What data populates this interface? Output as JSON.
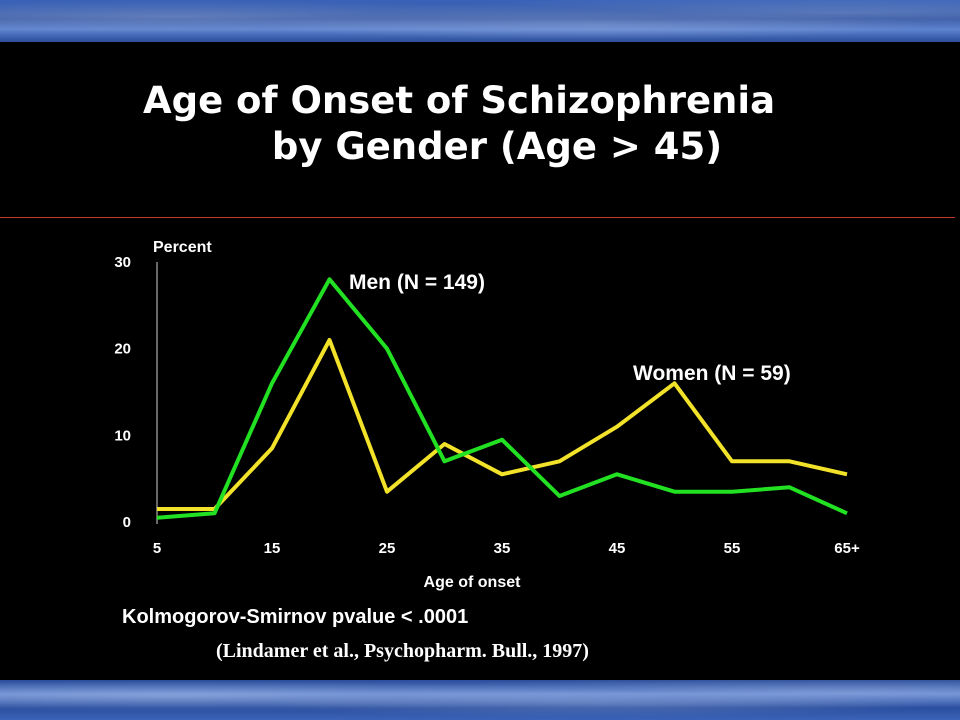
{
  "slide": {
    "title_line1": "Age of Onset of Schizophrenia",
    "title_line2": "by Gender (Age > 45)",
    "statistic": "Kolmogorov-Smirnov pvalue < .0001",
    "citation": "(Lindamer et al., Psychopharm. Bull., 1997)"
  },
  "colors": {
    "background": "#000000",
    "men": "#22e022",
    "women": "#f2e22a",
    "rule": "#c0392b",
    "text": "#ffffff"
  },
  "chart_data": {
    "type": "line",
    "title": "",
    "xlabel": "Age of onset",
    "ylabel": "Percent",
    "x": [
      5,
      10,
      15,
      20,
      25,
      30,
      35,
      40,
      45,
      50,
      55,
      60,
      65
    ],
    "x_tick_labels": [
      "5",
      "15",
      "25",
      "35",
      "45",
      "55",
      "65+"
    ],
    "x_tick_values": [
      5,
      15,
      25,
      35,
      45,
      55,
      65
    ],
    "y_ticks": [
      0,
      10,
      20,
      30
    ],
    "ylim": [
      0,
      30
    ],
    "xlim": [
      5,
      65
    ],
    "grid": false,
    "series": [
      {
        "name": "Men (N = 149)",
        "color": "#22e022",
        "values": [
          0.5,
          1,
          16,
          28,
          20,
          7,
          9.5,
          3,
          5.5,
          3.5,
          3.5,
          4,
          1
        ]
      },
      {
        "name": "Women (N = 59)",
        "color": "#f2e22a",
        "values": [
          1.5,
          1.5,
          8.5,
          21,
          3.5,
          9,
          5.5,
          7,
          11,
          16,
          7,
          7,
          5.5
        ]
      }
    ]
  }
}
